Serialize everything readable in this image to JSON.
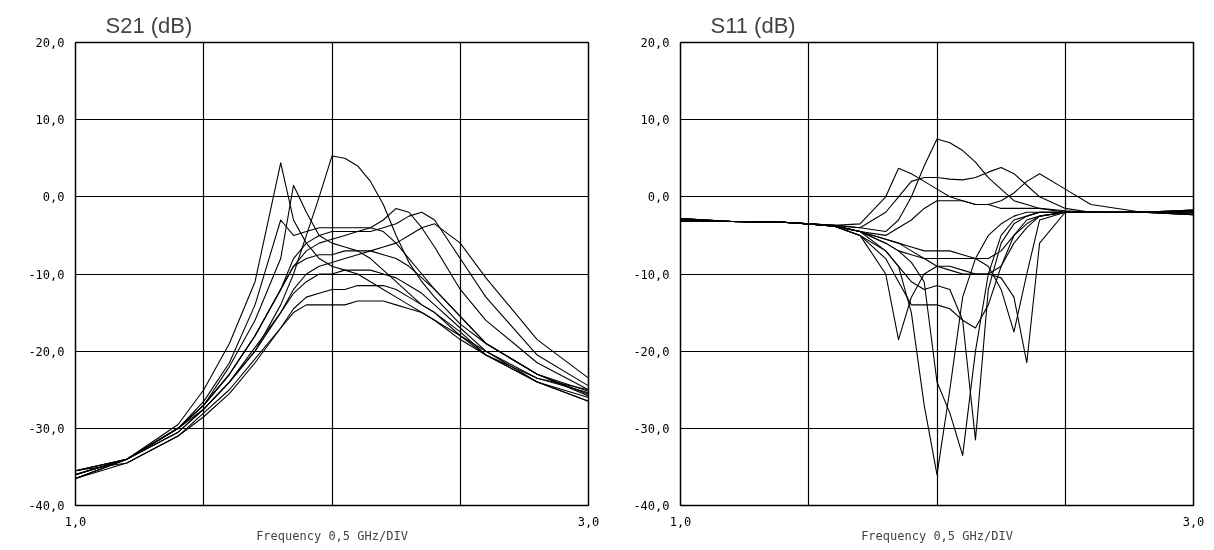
{
  "chart_data": [
    {
      "type": "line",
      "title": "S21 (dB)",
      "xlabel": "Frequency 0,5 GHz/DIV",
      "grid": true,
      "line_style": "solid",
      "xlim": [
        1.0,
        3.0
      ],
      "ylim": [
        -40,
        20
      ],
      "xticks": [
        {
          "value": 1.0,
          "label": "1,0"
        },
        {
          "value": 1.5,
          "label": null
        },
        {
          "value": 2.0,
          "label": null
        },
        {
          "value": 2.5,
          "label": null
        },
        {
          "value": 3.0,
          "label": "3,0"
        }
      ],
      "yticks": [
        {
          "value": -40,
          "label": "-40,0"
        },
        {
          "value": -30,
          "label": "-30,0"
        },
        {
          "value": -20,
          "label": "-20,0"
        },
        {
          "value": -10,
          "label": "-10,0"
        },
        {
          "value": 0,
          "label": "0,0"
        },
        {
          "value": 10,
          "label": "10,0"
        },
        {
          "value": 20,
          "label": "20,0"
        }
      ],
      "x": [
        1.0,
        1.2,
        1.4,
        1.5,
        1.6,
        1.7,
        1.8,
        1.85,
        1.9,
        1.95,
        2.0,
        2.05,
        2.1,
        2.15,
        2.2,
        2.25,
        2.3,
        2.35,
        2.4,
        2.5,
        2.6,
        2.8,
        3.0
      ],
      "series": [
        {
          "color": "#000000",
          "values": [
            -36,
            -34,
            -29.5,
            -25,
            -19,
            -11,
            4.4,
            -3,
            -6,
            -8,
            -9,
            -9.5,
            -10,
            -11,
            -12,
            -13,
            -14,
            -15,
            -16,
            -18.5,
            -20.5,
            -23.5,
            -25.4
          ]
        },
        {
          "color": "#000000",
          "values": [
            -35.5,
            -34,
            -30,
            -27,
            -22,
            -16,
            -8,
            1.5,
            -2,
            -5,
            -6,
            -6.5,
            -7,
            -8,
            -9.5,
            -11,
            -12.5,
            -14,
            -15,
            -18,
            -20,
            -23.5,
            -25
          ]
        },
        {
          "color": "#000000",
          "values": [
            -36.5,
            -34,
            -30,
            -27.5,
            -24,
            -20,
            -14,
            -10,
            -5,
            0,
            5.3,
            5,
            4,
            2,
            -1,
            -5,
            -8.5,
            -11,
            -13,
            -16.5,
            -19,
            -23,
            -25.8
          ]
        },
        {
          "color": "#000000",
          "values": [
            -36,
            -34,
            -30,
            -27,
            -23,
            -18,
            -12,
            -9,
            -7,
            -6,
            -5.5,
            -5,
            -4.5,
            -4,
            -3,
            -1.5,
            -2,
            -4,
            -6.5,
            -12,
            -16,
            -21.5,
            -25
          ]
        },
        {
          "color": "#000000",
          "values": [
            -35.5,
            -34,
            -30,
            -27,
            -23,
            -18,
            -12,
            -8,
            -6,
            -5,
            -4.5,
            -4.5,
            -4.5,
            -4.5,
            -4,
            -3.5,
            -2.5,
            -2,
            -3,
            -8,
            -13,
            -20.5,
            -24.5
          ]
        },
        {
          "color": "#000000",
          "values": [
            -36.5,
            -34,
            -30.5,
            -27.5,
            -24,
            -20,
            -15,
            -12,
            -10,
            -9,
            -8.5,
            -8,
            -7.5,
            -7,
            -6.5,
            -6,
            -5,
            -4,
            -3.5,
            -6,
            -10.5,
            -18.5,
            -23.5
          ]
        },
        {
          "color": "#000000",
          "values": [
            -36.5,
            -34.5,
            -31,
            -28.5,
            -25.5,
            -21.5,
            -17,
            -15,
            -14,
            -14,
            -14,
            -14,
            -13.5,
            -13.5,
            -13.5,
            -14,
            -14.5,
            -15,
            -16,
            -18,
            -20.5,
            -24,
            -26.5
          ]
        },
        {
          "color": "#000000",
          "values": [
            -35.5,
            -34,
            -30,
            -27,
            -23,
            -18,
            -12,
            -9,
            -8,
            -7.5,
            -7.5,
            -7,
            -7,
            -7,
            -7.5,
            -8,
            -9,
            -10.5,
            -12,
            -15.5,
            -19,
            -23,
            -25.6
          ]
        },
        {
          "color": "#000000",
          "values": [
            -36,
            -34,
            -30.5,
            -27.5,
            -24,
            -19.5,
            -15,
            -12.5,
            -11,
            -10,
            -10,
            -9.5,
            -9.5,
            -9.5,
            -10,
            -10.5,
            -11.5,
            -12.5,
            -14,
            -17,
            -20,
            -24,
            -26
          ]
        },
        {
          "color": "#000000",
          "values": [
            -35.5,
            -34.5,
            -31,
            -28,
            -25,
            -21,
            -17,
            -14.5,
            -13,
            -12.5,
            -12,
            -12,
            -11.5,
            -11.5,
            -11.5,
            -12,
            -13,
            -14,
            -15,
            -17.5,
            -20.5,
            -24,
            -26.5
          ]
        },
        {
          "color": "#000000",
          "values": [
            -36.5,
            -34,
            -30,
            -26.5,
            -21.5,
            -14,
            -3,
            -5,
            -4.5,
            -4,
            -4,
            -4,
            -4,
            -4,
            -4.5,
            -6,
            -8,
            -10,
            -12,
            -15.5,
            -19,
            -23,
            -25.2
          ]
        }
      ]
    },
    {
      "type": "line",
      "title": "S11 (dB)",
      "xlabel": "Frequency 0,5 GHz/DIV",
      "grid": true,
      "line_style": "solid",
      "xlim": [
        1.0,
        3.0
      ],
      "ylim": [
        -40,
        20
      ],
      "xticks": [
        {
          "value": 1.0,
          "label": "1,0"
        },
        {
          "value": 1.5,
          "label": null
        },
        {
          "value": 2.0,
          "label": null
        },
        {
          "value": 2.5,
          "label": null
        },
        {
          "value": 3.0,
          "label": "3,0"
        }
      ],
      "yticks": [
        {
          "value": -40,
          "label": "-40,0"
        },
        {
          "value": -30,
          "label": "-30,0"
        },
        {
          "value": -20,
          "label": "-20,0"
        },
        {
          "value": -10,
          "label": "-10,0"
        },
        {
          "value": 0,
          "label": "0,0"
        },
        {
          "value": 10,
          "label": "10,0"
        },
        {
          "value": 20,
          "label": "20,0"
        }
      ],
      "x": [
        1.0,
        1.2,
        1.4,
        1.5,
        1.6,
        1.7,
        1.8,
        1.85,
        1.9,
        1.95,
        2.0,
        2.05,
        2.1,
        2.15,
        2.2,
        2.25,
        2.3,
        2.35,
        2.4,
        2.5,
        2.6,
        2.8,
        3.0
      ],
      "series": [
        {
          "color": "#000000",
          "values": [
            -2.8,
            -3.2,
            -3.3,
            -3.5,
            -3.7,
            -4,
            -4.5,
            -3,
            0,
            4,
            7.5,
            7,
            6,
            4.5,
            2.5,
            1,
            -0.5,
            -1,
            -1.5,
            -2,
            -2,
            -2,
            -1.7
          ]
        },
        {
          "color": "#000000",
          "values": [
            -3,
            -3.2,
            -3.3,
            -3.5,
            -3.7,
            -3.5,
            0,
            3.7,
            3,
            2,
            1,
            0,
            -0.5,
            -1,
            -1,
            -1.5,
            -1.5,
            -1.5,
            -1.5,
            -1.8,
            -2,
            -2,
            -1.7
          ]
        },
        {
          "color": "#000000",
          "values": [
            -3.2,
            -3.2,
            -3.3,
            -3.5,
            -3.7,
            -4,
            -2,
            0,
            2,
            2.5,
            2.5,
            2.3,
            2.2,
            2.5,
            3.2,
            3.8,
            3,
            1.5,
            0,
            -1.5,
            -2,
            -2,
            -1.7
          ]
        },
        {
          "color": "#000000",
          "values": [
            -2.8,
            -3.2,
            -3.3,
            -3.5,
            -3.7,
            -4.5,
            -5,
            -4,
            -3,
            -1.5,
            -0.5,
            -0.5,
            -0.5,
            -1,
            -1,
            -0.5,
            0.5,
            2,
            3,
            1,
            -1,
            -2,
            -1.9
          ]
        },
        {
          "color": "#000000",
          "values": [
            -3,
            -3.2,
            -3.3,
            -3.5,
            -3.8,
            -4.5,
            -7,
            -9,
            -15,
            -27,
            -36,
            -25,
            -13,
            -8,
            -5,
            -3.5,
            -2.5,
            -2,
            -2,
            -2,
            -2,
            -2,
            -1.9
          ]
        },
        {
          "color": "#000000",
          "values": [
            -3.2,
            -3.2,
            -3.3,
            -3.5,
            -3.8,
            -4.5,
            -6,
            -7,
            -8.5,
            -11,
            -24,
            -28,
            -33.5,
            -20,
            -10,
            -5,
            -3,
            -2.5,
            -2,
            -2,
            -2,
            -2,
            -1.9
          ]
        },
        {
          "color": "#000000",
          "values": [
            -2.8,
            -3.2,
            -3.3,
            -3.5,
            -3.8,
            -5,
            -7,
            -9,
            -11,
            -12,
            -11.5,
            -12,
            -16,
            -31.5,
            -12,
            -6,
            -3.5,
            -2.5,
            -2,
            -2,
            -2,
            -2,
            -2.1
          ]
        },
        {
          "color": "#000000",
          "values": [
            -3,
            -3.2,
            -3.3,
            -3.5,
            -3.8,
            -4.5,
            -5.5,
            -6,
            -7,
            -8,
            -9,
            -9.5,
            -10,
            -10,
            -10,
            -10.5,
            -13,
            -21.5,
            -6,
            -2,
            -2,
            -2,
            -2.1
          ]
        },
        {
          "color": "#000000",
          "values": [
            -3.2,
            -3.2,
            -3.3,
            -3.5,
            -3.8,
            -5,
            -10,
            -18.5,
            -13,
            -10,
            -9,
            -9,
            -9.5,
            -10,
            -10,
            -9,
            -6,
            -4,
            -2.5,
            -2,
            -2,
            -2,
            -2.1
          ]
        },
        {
          "color": "#000000",
          "values": [
            -2.8,
            -3.2,
            -3.3,
            -3.5,
            -3.8,
            -4.5,
            -6,
            -7,
            -7.5,
            -8,
            -8,
            -8,
            -8,
            -8,
            -8,
            -7,
            -5,
            -3.5,
            -2.5,
            -2,
            -2,
            -2,
            -2.3
          ]
        },
        {
          "color": "#000000",
          "values": [
            -3,
            -3.2,
            -3.3,
            -3.5,
            -3.8,
            -5,
            -8,
            -11,
            -14,
            -14,
            -14,
            -14.5,
            -16,
            -17,
            -14,
            -9,
            -5,
            -3,
            -2.5,
            -2,
            -2,
            -2,
            -2.3
          ]
        },
        {
          "color": "#000000",
          "values": [
            -3.2,
            -3.2,
            -3.3,
            -3.5,
            -3.8,
            -4.5,
            -5.5,
            -6,
            -6.5,
            -7,
            -7,
            -7,
            -7.5,
            -8,
            -9,
            -12,
            -17.5,
            -10,
            -3,
            -2,
            -2,
            -2,
            -2.3
          ]
        }
      ]
    }
  ]
}
